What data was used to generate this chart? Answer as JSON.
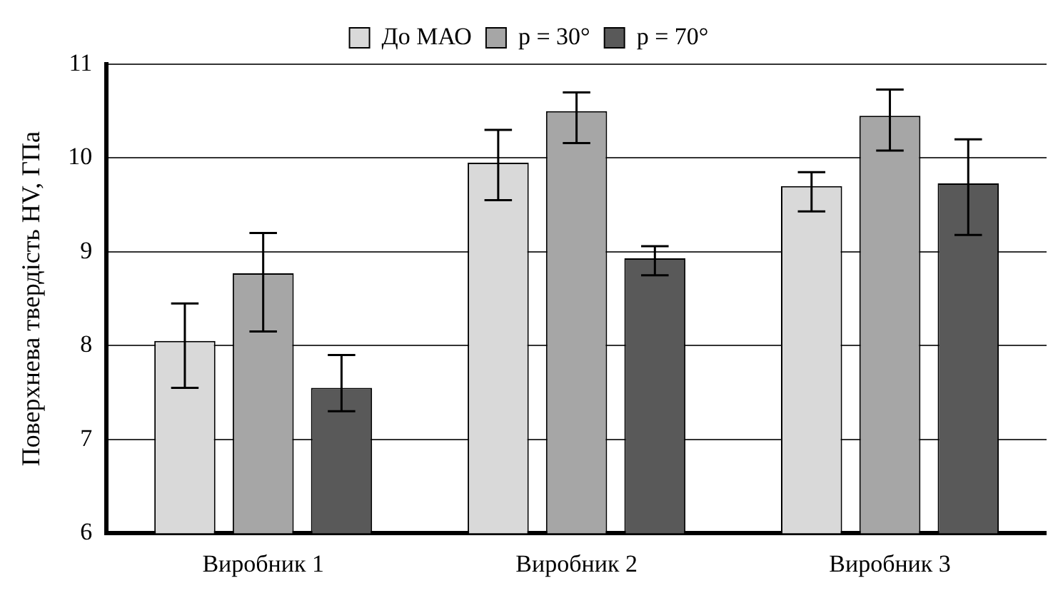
{
  "chart_data": {
    "type": "bar",
    "ylabel": "Поверхнева твердість HV, ГПа",
    "categories": [
      "Виробник 1",
      "Виробник 2",
      "Виробник 3"
    ],
    "series": [
      {
        "name": "До МАО",
        "color": "#d9d9d9",
        "values": [
          8.05,
          9.95,
          9.7
        ],
        "errors": [
          [
            7.55,
            8.45
          ],
          [
            9.55,
            10.3
          ],
          [
            9.43,
            9.85
          ]
        ]
      },
      {
        "name": "p = 30°",
        "color": "#a6a6a6",
        "values": [
          8.77,
          10.5,
          10.45
        ],
        "errors": [
          [
            8.15,
            9.2
          ],
          [
            10.16,
            10.7
          ],
          [
            10.08,
            10.73
          ]
        ]
      },
      {
        "name": "p = 70°",
        "color": "#595959",
        "values": [
          7.55,
          8.93,
          9.73
        ],
        "errors": [
          [
            7.3,
            7.9
          ],
          [
            8.75,
            9.06
          ],
          [
            9.18,
            10.2
          ]
        ]
      }
    ],
    "ylim": [
      6,
      11
    ],
    "yticks": [
      6,
      7,
      8,
      9,
      10,
      11
    ],
    "grid": "y",
    "legend": "top"
  }
}
